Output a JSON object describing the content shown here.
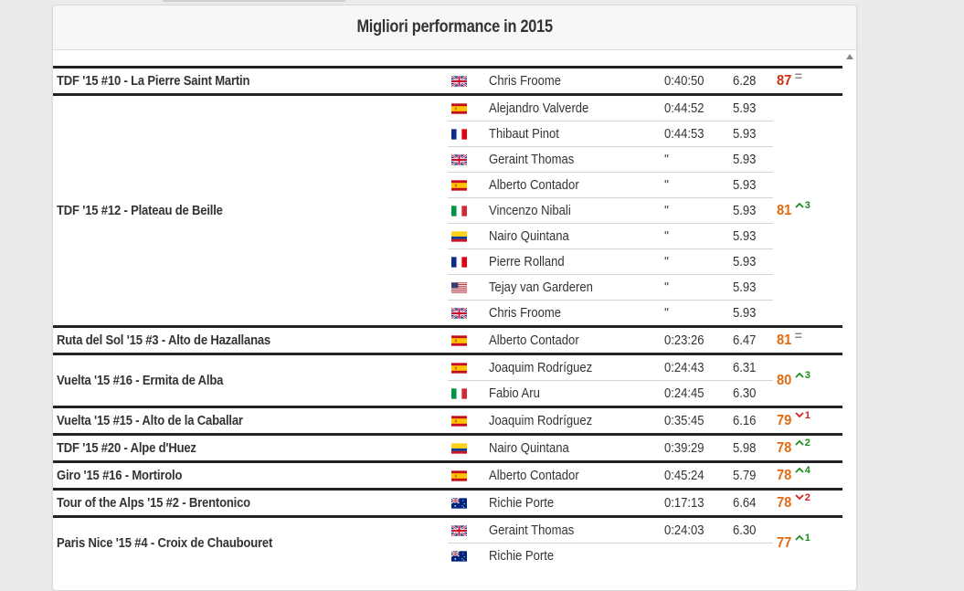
{
  "title": "Migliori performance in 2015",
  "colors": {
    "score_high": "#d02d10",
    "score_mid": "#e06a10",
    "trend_up": "#1a8a1a",
    "trend_down": "#d42020",
    "trend_eq": "#888888"
  },
  "climbs": [
    {
      "name": "TDF '15 #10 - La Pierre Saint Martin",
      "score": "87",
      "trend": {
        "dir": "eq",
        "val": "="
      },
      "score_color": "high",
      "rows": [
        {
          "flag": "gb",
          "rider": "Chris Froome",
          "time": "0:40:50",
          "wkg": "6.28"
        }
      ]
    },
    {
      "name": "TDF '15 #12 - Plateau de Beille",
      "score": "81",
      "trend": {
        "dir": "up",
        "val": "3"
      },
      "score_color": "mid",
      "rows": [
        {
          "flag": "es",
          "rider": "Alejandro Valverde",
          "time": "0:44:52",
          "wkg": "5.93"
        },
        {
          "flag": "fr",
          "rider": "Thibaut Pinot",
          "time": "0:44:53",
          "wkg": "5.93"
        },
        {
          "flag": "gb",
          "rider": "Geraint Thomas",
          "time": "''",
          "wkg": "5.93"
        },
        {
          "flag": "es",
          "rider": "Alberto Contador",
          "time": "''",
          "wkg": "5.93"
        },
        {
          "flag": "it",
          "rider": "Vincenzo Nibali",
          "time": "''",
          "wkg": "5.93"
        },
        {
          "flag": "co",
          "rider": "Nairo Quintana",
          "time": "''",
          "wkg": "5.93"
        },
        {
          "flag": "fr",
          "rider": "Pierre Rolland",
          "time": "''",
          "wkg": "5.93"
        },
        {
          "flag": "us",
          "rider": "Tejay van Garderen",
          "time": "''",
          "wkg": "5.93"
        },
        {
          "flag": "gb",
          "rider": "Chris Froome",
          "time": "''",
          "wkg": "5.93"
        }
      ]
    },
    {
      "name": "Ruta del Sol '15 #3 - Alto de Hazallanas",
      "score": "81",
      "trend": {
        "dir": "eq",
        "val": "="
      },
      "score_color": "mid",
      "rows": [
        {
          "flag": "es",
          "rider": "Alberto Contador",
          "time": "0:23:26",
          "wkg": "6.47"
        }
      ]
    },
    {
      "name": "Vuelta '15 #16 - Ermita de Alba",
      "score": "80",
      "trend": {
        "dir": "up",
        "val": "3"
      },
      "score_color": "mid",
      "rows": [
        {
          "flag": "es",
          "rider": "Joaquim Rodríguez",
          "time": "0:24:43",
          "wkg": "6.31"
        },
        {
          "flag": "it",
          "rider": "Fabio Aru",
          "time": "0:24:45",
          "wkg": "6.30"
        }
      ]
    },
    {
      "name": "Vuelta '15 #15 - Alto de la Caballar",
      "score": "79",
      "trend": {
        "dir": "down",
        "val": "1"
      },
      "score_color": "mid",
      "rows": [
        {
          "flag": "es",
          "rider": "Joaquim Rodríguez",
          "time": "0:35:45",
          "wkg": "6.16"
        }
      ]
    },
    {
      "name": "TDF '15 #20 - Alpe d'Huez",
      "score": "78",
      "trend": {
        "dir": "up",
        "val": "2"
      },
      "score_color": "mid",
      "rows": [
        {
          "flag": "co",
          "rider": "Nairo Quintana",
          "time": "0:39:29",
          "wkg": "5.98"
        }
      ]
    },
    {
      "name": "Giro '15 #16 - Mortirolo",
      "score": "78",
      "trend": {
        "dir": "up",
        "val": "4"
      },
      "score_color": "mid",
      "rows": [
        {
          "flag": "es",
          "rider": "Alberto Contador",
          "time": "0:45:24",
          "wkg": "5.79"
        }
      ]
    },
    {
      "name": "Tour of the Alps '15 #2 - Brentonico",
      "score": "78",
      "trend": {
        "dir": "down",
        "val": "2"
      },
      "score_color": "mid",
      "rows": [
        {
          "flag": "au",
          "rider": "Richie Porte",
          "time": "0:17:13",
          "wkg": "6.64"
        }
      ]
    },
    {
      "name": "Paris Nice '15 #4 - Croix de Chaubouret",
      "score": "77",
      "trend": {
        "dir": "up",
        "val": "1"
      },
      "score_color": "mid",
      "rows": [
        {
          "flag": "gb",
          "rider": "Geraint Thomas",
          "time": "0:24:03",
          "wkg": "6.30"
        },
        {
          "flag": "au",
          "rider": "Richie Porte",
          "time": "",
          "wkg": ""
        }
      ]
    }
  ]
}
